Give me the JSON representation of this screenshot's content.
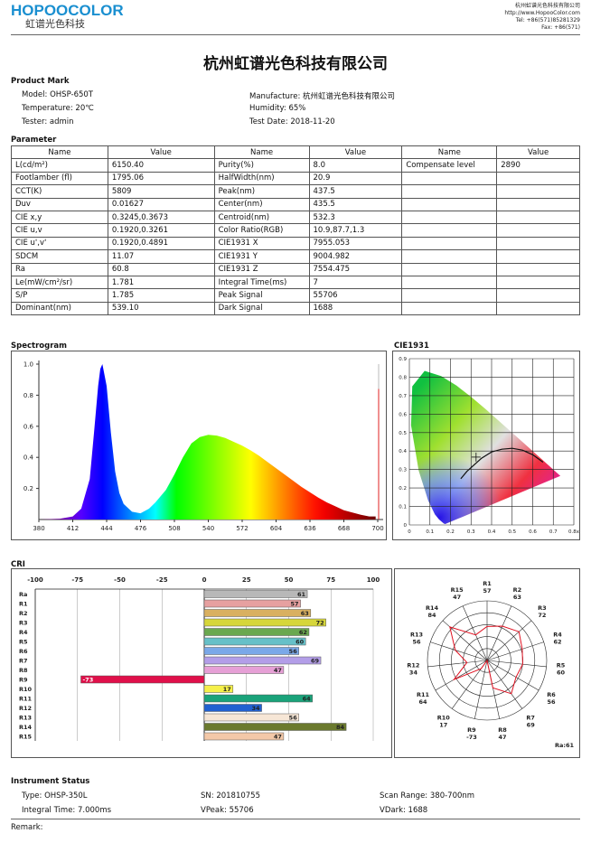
{
  "header": {
    "logo": "HOPOOCOLOR",
    "logo_sub": "虹谱光色科技",
    "company_line": "杭州虹谱光色科技有限公司",
    "website": "http://www.HopooColor.com",
    "tel": "Tel: +86(571)85281329",
    "fax": "Fax: +86(571)",
    "title": "杭州虹谱光色科技有限公司"
  },
  "product_mark": {
    "heading": "Product Mark",
    "model": "Model: OHSP-650T",
    "manufacture": "Manufacture: 杭州虹谱光色科技有限公司",
    "temperature": "Temperature: 20℃",
    "humidity": "Humidity: 65%",
    "tester": "Tester: admin",
    "test_date": "Test Date: 2018-11-20"
  },
  "parameter": {
    "heading": "Parameter",
    "headers": [
      "Name",
      "Value",
      "Name",
      "Value",
      "Name",
      "Value"
    ],
    "rows": [
      [
        "L(cd/m²)",
        "6150.40",
        "Purity(%)",
        "8.0",
        "Compensate level",
        "2890"
      ],
      [
        "Footlamber (fl)",
        "1795.06",
        "HalfWidth(nm)",
        "20.9",
        "",
        ""
      ],
      [
        "CCT(K)",
        "5809",
        "Peak(nm)",
        "437.5",
        "",
        ""
      ],
      [
        "Duv",
        "0.01627",
        "Center(nm)",
        "435.5",
        "",
        ""
      ],
      [
        "CIE x,y",
        "0.3245,0.3673",
        "Centroid(nm)",
        "532.3",
        "",
        ""
      ],
      [
        "CIE u,v",
        "0.1920,0.3261",
        "Color Ratio(RGB)",
        "10.9,87.7,1.3",
        "",
        ""
      ],
      [
        "CIE u',v'",
        "0.1920,0.4891",
        "CIE1931 X",
        "7955.053",
        "",
        ""
      ],
      [
        "SDCM",
        "11.07",
        "CIE1931 Y",
        "9004.982",
        "",
        ""
      ],
      [
        "Ra",
        "60.8",
        "CIE1931 Z",
        "7554.475",
        "",
        ""
      ],
      [
        "Le(mW/cm²/sr)",
        "1.781",
        "Integral Time(ms)",
        "7",
        "",
        ""
      ],
      [
        "S/P",
        "1.785",
        "Peak Signal",
        "55706",
        "",
        ""
      ],
      [
        "Dominant(nm)",
        "539.10",
        "Dark Signal",
        "1688",
        "",
        ""
      ]
    ]
  },
  "spectrogram": {
    "heading": "Spectrogram",
    "x_ticks": [
      "380",
      "412",
      "444",
      "476",
      "508",
      "540",
      "572",
      "604",
      "636",
      "668",
      "700"
    ],
    "y_ticks": [
      "1.0",
      "0.8",
      "0.6",
      "0.4",
      "0.2"
    ]
  },
  "cie": {
    "heading": "CIE1931",
    "x_ticks": [
      "0",
      "0.1",
      "0.2",
      "0.3",
      "0.4",
      "0.5",
      "0.6",
      "0.7",
      "0.8x"
    ],
    "y_ticks": [
      "0.9",
      "0.8",
      "0.7",
      "0.6",
      "0.5",
      "0.4",
      "0.3",
      "0.2",
      "0.1",
      "0"
    ]
  },
  "cri": {
    "heading": "CRI",
    "x_ticks": [
      "-100",
      "-75",
      "-50",
      "-25",
      "0",
      "25",
      "50",
      "75",
      "100"
    ],
    "ra_label": "Ra:61"
  },
  "chart_data": [
    {
      "type": "line",
      "title": "Spectrogram",
      "xlabel": "",
      "ylabel": "",
      "xlim": [
        380,
        700
      ],
      "ylim": [
        0,
        1.0
      ],
      "x": [
        380,
        400,
        412,
        420,
        428,
        432,
        436,
        438,
        440,
        444,
        448,
        452,
        456,
        460,
        468,
        476,
        484,
        490,
        500,
        508,
        516,
        524,
        532,
        540,
        548,
        556,
        564,
        572,
        580,
        588,
        596,
        604,
        612,
        620,
        628,
        636,
        644,
        652,
        660,
        668,
        676,
        684,
        692,
        698
      ],
      "series": [
        {
          "values": [
            0.0,
            0.005,
            0.02,
            0.07,
            0.26,
            0.55,
            0.86,
            0.97,
            1.0,
            0.86,
            0.56,
            0.31,
            0.17,
            0.1,
            0.05,
            0.04,
            0.07,
            0.11,
            0.19,
            0.29,
            0.4,
            0.49,
            0.53,
            0.545,
            0.54,
            0.525,
            0.5,
            0.475,
            0.445,
            0.41,
            0.37,
            0.33,
            0.29,
            0.25,
            0.21,
            0.175,
            0.14,
            0.11,
            0.085,
            0.06,
            0.045,
            0.03,
            0.02,
            0.02
          ]
        }
      ]
    },
    {
      "type": "scatter",
      "title": "CIE1931",
      "xlim": [
        0,
        0.8
      ],
      "ylim": [
        0,
        0.9
      ],
      "point": {
        "x": 0.3245,
        "y": 0.3673
      },
      "planckian_locus": {
        "x": [
          0.25,
          0.28,
          0.31,
          0.35,
          0.4,
          0.45,
          0.5,
          0.55,
          0.6,
          0.65
        ],
        "y": [
          0.25,
          0.29,
          0.32,
          0.36,
          0.395,
          0.41,
          0.415,
          0.405,
          0.38,
          0.34
        ]
      }
    },
    {
      "type": "bar",
      "title": "CRI",
      "xlim": [
        -100,
        100
      ],
      "categories": [
        "Ra",
        "R1",
        "R2",
        "R3",
        "R4",
        "R5",
        "R6",
        "R7",
        "R8",
        "R9",
        "R10",
        "R11",
        "R12",
        "R13",
        "R14",
        "R15"
      ],
      "values": [
        61,
        57,
        63,
        72,
        62,
        60,
        56,
        69,
        47,
        -73,
        17,
        64,
        34,
        56,
        84,
        47
      ],
      "colors": [
        "#b8b8b8",
        "#e6a0a0",
        "#d9b060",
        "#d6d63a",
        "#6aa84f",
        "#66c0c8",
        "#7aa8e8",
        "#b39ee8",
        "#e6a0d6",
        "#e0104a",
        "#f5f04a",
        "#1aa37a",
        "#2060d0",
        "#f6e6d6",
        "#6b7a2e",
        "#f3c8a8"
      ]
    },
    {
      "type": "radar",
      "title": "",
      "categories": [
        "R1",
        "R2",
        "R3",
        "R4",
        "R5",
        "R6",
        "R7",
        "R8",
        "R9",
        "R10",
        "R11",
        "R12",
        "R13",
        "R14",
        "R15"
      ],
      "values": [
        57,
        63,
        72,
        62,
        60,
        56,
        69,
        47,
        -73,
        17,
        64,
        34,
        56,
        84,
        47
      ]
    }
  ],
  "instrument": {
    "heading": "Instrument Status",
    "type": "Type: OHSP-350L",
    "sn": "SN: 201810755",
    "scan_range": "Scan Range: 380-700nm",
    "integral_time": "Integral Time: 7.000ms",
    "vpeak": "VPeak: 55706",
    "vdark": "VDark: 1688"
  },
  "remark": "Remark:"
}
